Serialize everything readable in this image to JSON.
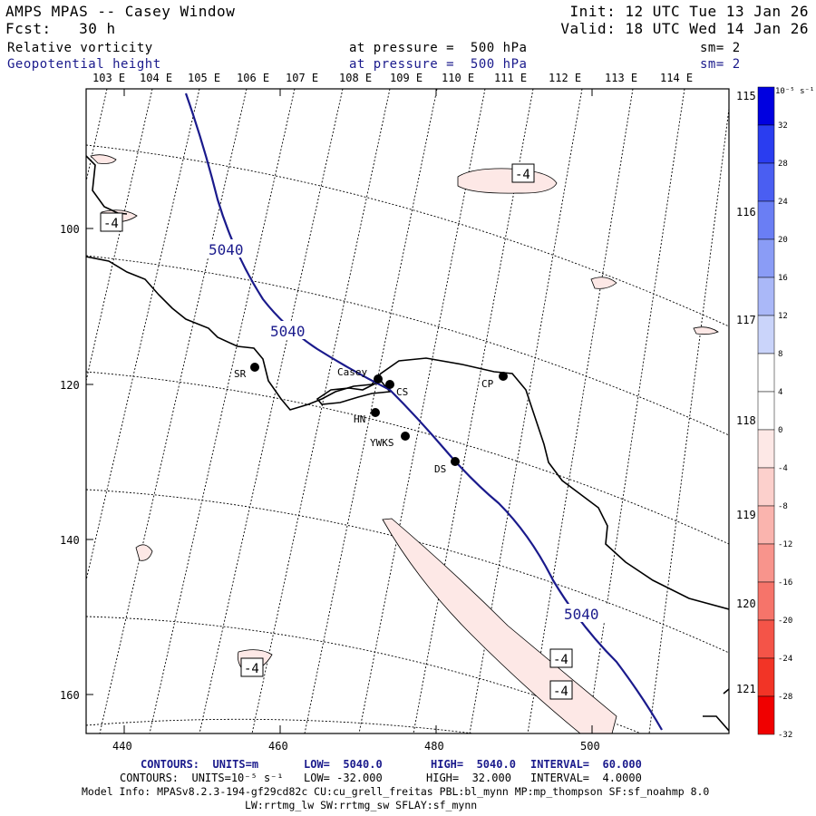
{
  "header": {
    "title": "AMPS MPAS -- Casey Window",
    "init": "Init: 12 UTC Tue 13 Jan 26",
    "fcst": "Fcst:   30 h",
    "valid": "Valid: 18 UTC Wed 14 Jan 26",
    "field1": {
      "name": "Relative vorticity",
      "pressure": "at pressure =  500 hPa",
      "sm": "sm= 2"
    },
    "field2": {
      "name": "Geopotential height",
      "pressure": "at pressure =  500 hPa",
      "sm": "sm= 2"
    }
  },
  "axes": {
    "lon_labels": [
      "103 E",
      "104 E",
      "105 E",
      "106 E",
      "107 E",
      "108 E",
      "109 E",
      "110 E",
      "111 E",
      "112 E",
      "113 E",
      "114 E"
    ],
    "right_lon_labels": [
      "115 E",
      "116 E",
      "117 E",
      "118 E",
      "119 E",
      "120 E",
      "121 E"
    ],
    "x_ticks": [
      "440",
      "460",
      "480",
      "500"
    ],
    "y_ticks": [
      "100",
      "120",
      "140",
      "160"
    ]
  },
  "stations": [
    {
      "label": "SR"
    },
    {
      "label": "Casey"
    },
    {
      "label": "CS"
    },
    {
      "label": "HN"
    },
    {
      "label": "YWKS"
    },
    {
      "label": "DS"
    },
    {
      "label": "CP"
    }
  ],
  "contour_labels": {
    "height": [
      "5040",
      "5040",
      "5040"
    ],
    "vorticity": [
      "-4",
      "-4",
      "-4",
      "-4",
      "-4"
    ]
  },
  "colorbar": {
    "unit": "10⁻⁵ s⁻¹",
    "ticks": [
      "32",
      "28",
      "24",
      "20",
      "16",
      "12",
      "8",
      "4",
      "0",
      "-4",
      "-8",
      "-12",
      "-16",
      "-20",
      "-24",
      "-28",
      "-32"
    ],
    "colors": [
      "#0000e0",
      "#2a3df0",
      "#4a5ef2",
      "#6a7ef4",
      "#8a9cf6",
      "#aab8f8",
      "#cad4fa",
      "#ffffff",
      "#ffffff",
      "#fde8e6",
      "#fcd0cc",
      "#fab4ae",
      "#f8948c",
      "#f6746a",
      "#f45448",
      "#f23426",
      "#f00000"
    ]
  },
  "footer": {
    "line1_units": "CONTOURS:  UNITS=m",
    "line1_low": "LOW=  5040.0",
    "line1_high": "HIGH=  5040.0",
    "line1_interval": "INTERVAL=  60.000",
    "line2_units": "CONTOURS:  UNITS=10⁻⁵ s⁻¹",
    "line2_low": "LOW= -32.000",
    "line2_high": "HIGH=  32.000",
    "line2_interval": "INTERVAL=  4.0000",
    "model_info": "Model Info: MPASv8.2.3-194-gf29cd82c CU:cu_grell_freitas PBL:bl_mynn MP:mp_thompson SF:sf_noahmp 8.0",
    "model_info2": "LW:rrtmg_lw SW:rrtmg_sw SFLAY:sf_mynn"
  }
}
